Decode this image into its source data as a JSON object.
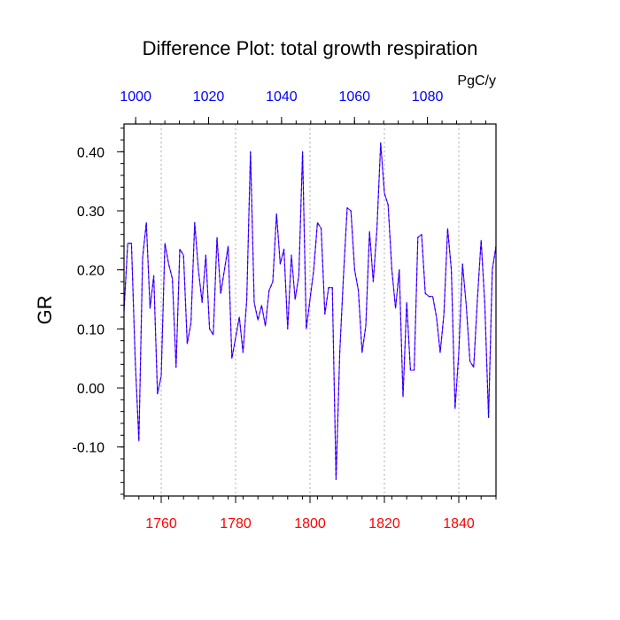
{
  "chart_data": {
    "type": "line",
    "title": "Difference Plot: total growth respiration",
    "units_label": "PgC/y",
    "ylabel": "GR",
    "xlabel": "",
    "x_bottom": {
      "range": [
        1750,
        1850
      ],
      "ticks": [
        1760,
        1780,
        1800,
        1820,
        1840
      ],
      "tick_color": "#ff0000"
    },
    "x_top": {
      "range": [
        996.8,
        1098.8
      ],
      "ticks": [
        1000,
        1020,
        1040,
        1060,
        1080
      ],
      "tick_color": "#0000ff"
    },
    "y": {
      "range": [
        -0.183,
        0.447
      ],
      "ticks": [
        0.4,
        0.3,
        0.2,
        0.1,
        0.0,
        -0.1
      ],
      "tick_labels": [
        "0.40",
        "0.30",
        "0.20",
        "0.10",
        "0.00",
        "-0.10"
      ]
    },
    "grid": "vertical dotted at bottom-axis ticks",
    "line_color": "#7a00ff",
    "line_dash_color": "#0000ff",
    "x": [
      1750,
      1751,
      1752,
      1753,
      1754,
      1755,
      1756,
      1757,
      1758,
      1759,
      1760,
      1761,
      1762,
      1763,
      1764,
      1765,
      1766,
      1767,
      1768,
      1769,
      1770,
      1771,
      1772,
      1773,
      1774,
      1775,
      1776,
      1777,
      1778,
      1779,
      1780,
      1781,
      1782,
      1783,
      1784,
      1785,
      1786,
      1787,
      1788,
      1789,
      1790,
      1791,
      1792,
      1793,
      1794,
      1795,
      1796,
      1797,
      1798,
      1799,
      1800,
      1801,
      1802,
      1803,
      1804,
      1805,
      1806,
      1807,
      1808,
      1809,
      1810,
      1811,
      1812,
      1813,
      1814,
      1815,
      1816,
      1817,
      1818,
      1819,
      1820,
      1821,
      1822,
      1823,
      1824,
      1825,
      1826,
      1827,
      1828,
      1829,
      1830,
      1831,
      1832,
      1833,
      1834,
      1835,
      1836,
      1837,
      1838,
      1839,
      1840,
      1841,
      1842,
      1843,
      1844,
      1845,
      1846,
      1847,
      1848,
      1849,
      1850
    ],
    "values": [
      0.13,
      0.245,
      0.245,
      0.05,
      -0.09,
      0.22,
      0.28,
      0.135,
      0.19,
      -0.01,
      0.02,
      0.245,
      0.21,
      0.185,
      0.035,
      0.235,
      0.225,
      0.075,
      0.11,
      0.28,
      0.2,
      0.145,
      0.225,
      0.1,
      0.09,
      0.255,
      0.16,
      0.2,
      0.24,
      0.05,
      0.085,
      0.12,
      0.06,
      0.15,
      0.4,
      0.145,
      0.115,
      0.14,
      0.105,
      0.165,
      0.18,
      0.295,
      0.21,
      0.235,
      0.1,
      0.225,
      0.15,
      0.19,
      0.4,
      0.1,
      0.15,
      0.2,
      0.28,
      0.27,
      0.125,
      0.17,
      0.17,
      -0.155,
      0.06,
      0.19,
      0.305,
      0.3,
      0.2,
      0.165,
      0.06,
      0.105,
      0.265,
      0.18,
      0.27,
      0.415,
      0.33,
      0.31,
      0.2,
      0.135,
      0.2,
      -0.015,
      0.145,
      0.03,
      0.03,
      0.255,
      0.26,
      0.16,
      0.155,
      0.155,
      0.12,
      0.06,
      0.125,
      0.27,
      0.2,
      -0.035,
      0.06,
      0.21,
      0.14,
      0.045,
      0.035,
      0.15,
      0.25,
      0.14,
      -0.05,
      0.2,
      0.24
    ]
  }
}
